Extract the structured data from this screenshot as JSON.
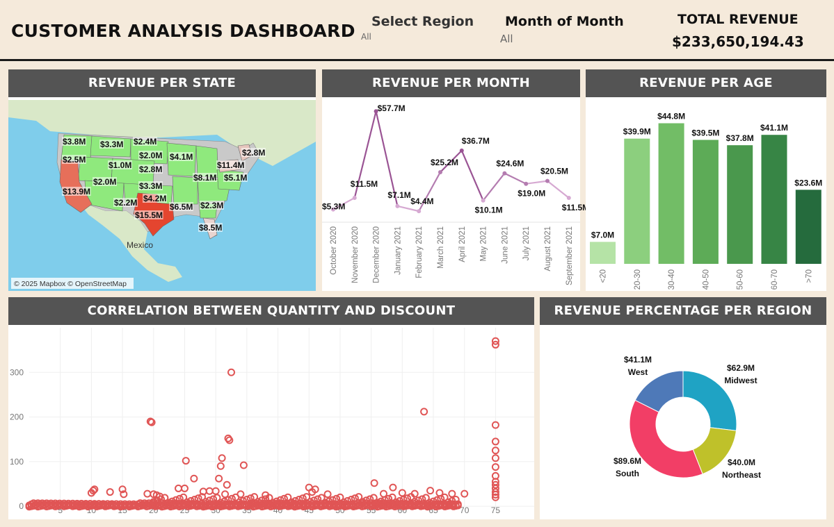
{
  "header": {
    "title": "CUSTOMER ANALYSIS DASHBOARD",
    "region_filter": {
      "label": "Select Region",
      "value": "All"
    },
    "month_filter": {
      "label": "Month of Month",
      "value": "All"
    },
    "kpi": {
      "label": "TOTAL REVENUE",
      "value": "$233,650,194.43"
    }
  },
  "colors": {
    "header_bg": "#f5eadb",
    "panel_header": "#545454",
    "line": "#a86aa4",
    "scatter": "#e05555",
    "green_light": "#b5e3a6",
    "green_dark": "#256b3d"
  },
  "map": {
    "title": "REVENUE PER STATE",
    "attribution": "© 2025 Mapbox © OpenStreetMap",
    "place_label": "Mexico",
    "labels": [
      "$3.8M",
      "$3.3M",
      "$2.4M",
      "$2.5M",
      "$1.0M",
      "$2.0M",
      "$4.1M",
      "$2.8M",
      "$11.4M",
      "$2.8M",
      "$8.1M",
      "$5.1M",
      "$13.9M",
      "$2.0M",
      "$3.3M",
      "$4.2M",
      "$2.2M",
      "$6.5M",
      "$2.3M",
      "$15.5M",
      "$8.5M"
    ]
  },
  "chart_data": [
    {
      "type": "line",
      "title": "REVENUE PER MONTH",
      "categories": [
        "October 2020",
        "November 2020",
        "December 2020",
        "January 2021",
        "February 2021",
        "March 2021",
        "April 2021",
        "May 2021",
        "June 2021",
        "July 2021",
        "August 2021",
        "September 2021"
      ],
      "values": [
        5.3,
        11.5,
        57.7,
        7.1,
        4.4,
        25.2,
        36.7,
        10.1,
        24.6,
        19.0,
        20.5,
        11.5
      ],
      "data_labels": [
        "$5.3M",
        "$11.5M",
        "$57.7M",
        "$7.1M",
        "$4.4M",
        "$25.2M",
        "$36.7M",
        "$10.1M",
        "$24.6M",
        "$19.0M",
        "$20.5M",
        "$11.5M"
      ],
      "ylim": [
        0,
        60
      ],
      "grid": false
    },
    {
      "type": "bar",
      "title": "REVENUE PER AGE",
      "categories": [
        "<20",
        "20-30",
        "30-40",
        "40-50",
        "50-60",
        "60-70",
        ">70"
      ],
      "values": [
        7.0,
        39.9,
        44.8,
        39.5,
        37.8,
        41.1,
        23.6
      ],
      "data_labels": [
        "$7.0M",
        "$39.9M",
        "$44.8M",
        "$39.5M",
        "$37.8M",
        "$41.1M",
        "$23.6M"
      ],
      "colors": [
        "#b5e3a6",
        "#8ccf7e",
        "#72bd66",
        "#5dab57",
        "#4a984d",
        "#378545",
        "#256b3d"
      ],
      "ylim": [
        0,
        50
      ],
      "grid": false
    },
    {
      "type": "scatter",
      "title": "CORRELATION BETWEEN QUANTITY AND DISCOUNT",
      "xlim": [
        0,
        80
      ],
      "ylim": [
        -20,
        400
      ],
      "x_ticks": [
        5,
        10,
        15,
        20,
        25,
        30,
        35,
        40,
        45,
        50,
        55,
        60,
        65,
        70,
        75
      ],
      "y_ticks": [
        0,
        100,
        200,
        300
      ],
      "grid": true,
      "points": [
        [
          10,
          30
        ],
        [
          10.3,
          35
        ],
        [
          10.5,
          38
        ],
        [
          13,
          32
        ],
        [
          15,
          38
        ],
        [
          15.2,
          27
        ],
        [
          19,
          28
        ],
        [
          19.5,
          190
        ],
        [
          19.7,
          188
        ],
        [
          20,
          27
        ],
        [
          20.5,
          25
        ],
        [
          21,
          22
        ],
        [
          24,
          40
        ],
        [
          25,
          40
        ],
        [
          25.2,
          102
        ],
        [
          26.5,
          62
        ],
        [
          28,
          33
        ],
        [
          29,
          34
        ],
        [
          30,
          34
        ],
        [
          30.5,
          62
        ],
        [
          30.8,
          90
        ],
        [
          31,
          108
        ],
        [
          31.5,
          27
        ],
        [
          31.8,
          48
        ],
        [
          32,
          152
        ],
        [
          32.2,
          148
        ],
        [
          32.5,
          300
        ],
        [
          34,
          27
        ],
        [
          34.5,
          92
        ],
        [
          38,
          25
        ],
        [
          45,
          42
        ],
        [
          45.5,
          32
        ],
        [
          46,
          38
        ],
        [
          48,
          27
        ],
        [
          55.5,
          52
        ],
        [
          57,
          28
        ],
        [
          58.5,
          42
        ],
        [
          60,
          30
        ],
        [
          62,
          28
        ],
        [
          63.5,
          212
        ],
        [
          64.5,
          35
        ],
        [
          66,
          30
        ],
        [
          68,
          28
        ],
        [
          70,
          28
        ],
        [
          75,
          370
        ],
        [
          75,
          362
        ],
        [
          75,
          182
        ],
        [
          75,
          145
        ],
        [
          75,
          125
        ],
        [
          75,
          108
        ],
        [
          75,
          88
        ],
        [
          75,
          68
        ],
        [
          75,
          55
        ],
        [
          75,
          48
        ],
        [
          75,
          40
        ],
        [
          75,
          32
        ],
        [
          75,
          26
        ],
        [
          75,
          20
        ]
      ]
    },
    {
      "type": "pie",
      "title": "REVENUE PERCENTAGE PER REGION",
      "categories": [
        "Midwest",
        "Northeast",
        "South",
        "West"
      ],
      "values": [
        62.9,
        40.0,
        89.6,
        41.1
      ],
      "data_labels": [
        "$62.9M",
        "$40.0M",
        "$89.6M",
        "$41.1M"
      ],
      "colors": [
        "#1fa3c4",
        "#bfc12a",
        "#f23e66",
        "#4e79b8"
      ]
    }
  ]
}
